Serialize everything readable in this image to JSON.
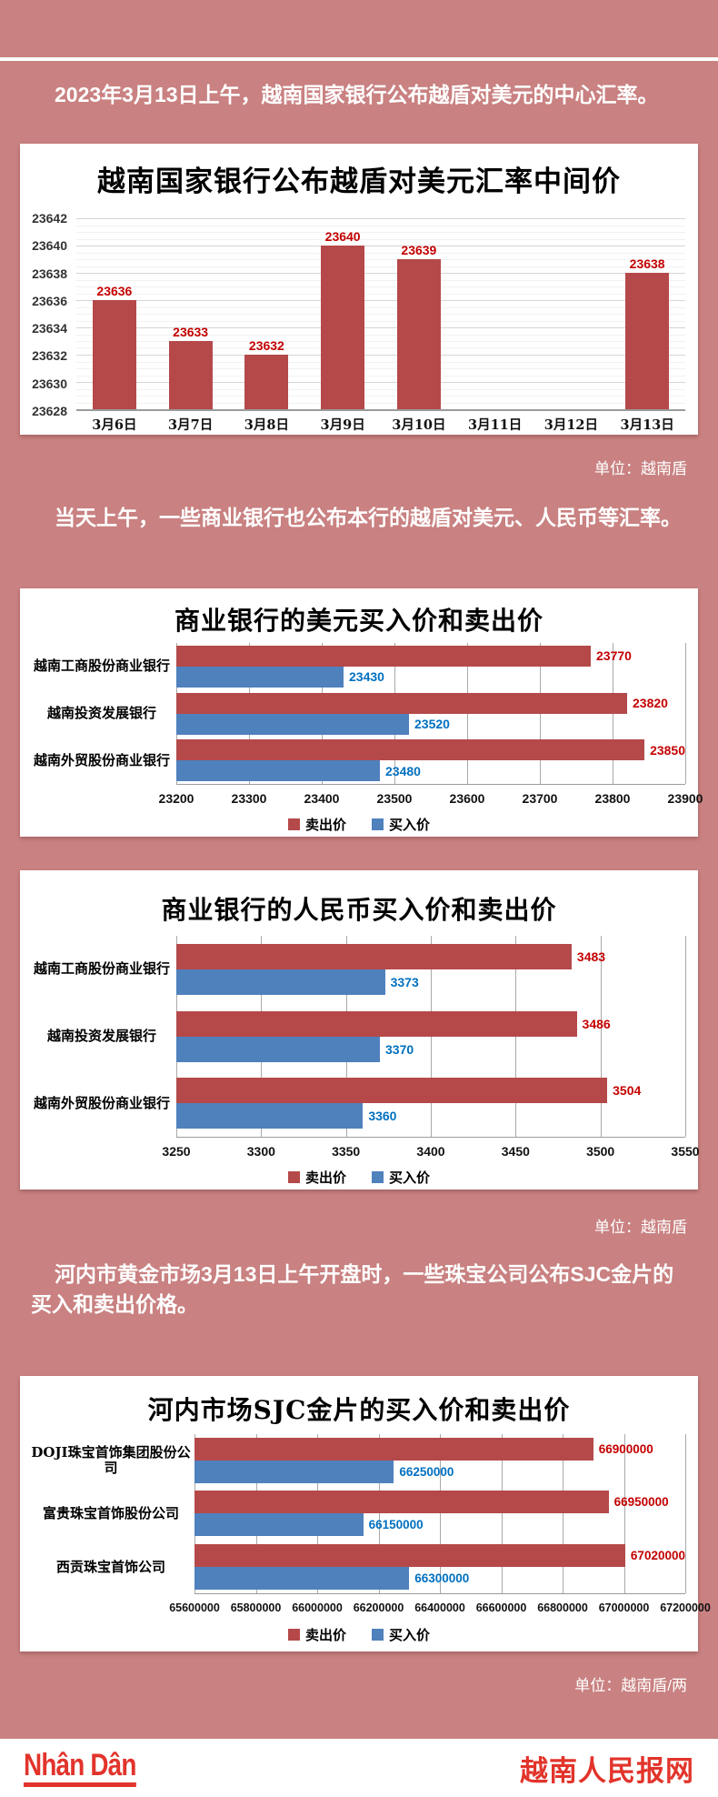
{
  "page": {
    "background_color": "#c98181",
    "intro_paragraphs": [
      "2023年3月13日上午，越南国家银行公布越盾对美元的中心汇率。",
      "当天上午，一些商业银行也公布本行的越盾对美元、人民币等汇率。",
      "河内市黄金市场3月13日上午开盘时，一些珠宝公司公布SJC金片的买入和卖出价格。"
    ],
    "unit_labels": [
      "单位：越南盾",
      "单位：越南盾",
      "单位：越南盾/两"
    ]
  },
  "colors": {
    "sell_bar": "#b5494a",
    "buy_bar": "#4f81bd",
    "sell_label": "#c40000",
    "buy_label": "#0070c0",
    "accent_red": "#e2342b",
    "panel": "#ffffff"
  },
  "footer": {
    "logo_text": "Nhân Dân",
    "site_name": "越南人民报网"
  },
  "chart_data": [
    {
      "type": "bar",
      "title": "越南国家银行公布越盾对美元汇率中间价",
      "categories": [
        "3月6日",
        "3月7日",
        "3月8日",
        "3月9日",
        "3月10日",
        "3月11日",
        "3月12日",
        "3月13日"
      ],
      "values": [
        23636,
        23633,
        23632,
        23640,
        23639,
        null,
        null,
        23638
      ],
      "ylim": [
        23628,
        23642
      ],
      "ytick_step": 2,
      "yticks": [
        23642,
        23640,
        23638,
        23636,
        23634,
        23632,
        23630,
        23628
      ],
      "bar_color": "#b5494a",
      "label_color": "#c40000",
      "grid": true,
      "legend": false,
      "unit": "单位：越南盾"
    },
    {
      "type": "bar-horizontal",
      "title": "商业银行的美元买入价和卖出价",
      "categories": [
        "越南工商股份商业银行",
        "越南投资发展银行",
        "越南外贸股份商业银行"
      ],
      "series": [
        {
          "name": "卖出价",
          "color": "#b5494a",
          "label_color": "#c40000",
          "values": [
            23770,
            23820,
            23850
          ]
        },
        {
          "name": "买入价",
          "color": "#4f81bd",
          "label_color": "#0070c0",
          "values": [
            23430,
            23520,
            23480
          ]
        }
      ],
      "xlim": [
        23200,
        23900
      ],
      "xticks": [
        23200,
        23300,
        23400,
        23500,
        23600,
        23700,
        23800,
        23900
      ],
      "grid": true,
      "legend_position": "bottom"
    },
    {
      "type": "bar-horizontal",
      "title": "商业银行的人民币买入价和卖出价",
      "categories": [
        "越南工商股份商业银行",
        "越南投资发展银行",
        "越南外贸股份商业银行"
      ],
      "series": [
        {
          "name": "卖出价",
          "color": "#b5494a",
          "label_color": "#c40000",
          "values": [
            3483,
            3486,
            3504
          ]
        },
        {
          "name": "买入价",
          "color": "#4f81bd",
          "label_color": "#0070c0",
          "values": [
            3373,
            3370,
            3360
          ]
        }
      ],
      "xlim": [
        3250,
        3550
      ],
      "xticks": [
        3250,
        3300,
        3350,
        3400,
        3450,
        3500,
        3550
      ],
      "grid": true,
      "legend_position": "bottom",
      "unit": "单位：越南盾"
    },
    {
      "type": "bar-horizontal",
      "title": "河内市场SJC金片的买入价和卖出价",
      "categories": [
        "DOJI珠宝首饰集团股份公司",
        "富贵珠宝首饰股份公司",
        "西贡珠宝首饰公司"
      ],
      "series": [
        {
          "name": "卖出价",
          "color": "#b5494a",
          "label_color": "#c40000",
          "values": [
            66900000,
            66950000,
            67020000
          ]
        },
        {
          "name": "买入价",
          "color": "#4f81bd",
          "label_color": "#0070c0",
          "values": [
            66250000,
            66150000,
            66300000
          ]
        }
      ],
      "xlim": [
        65600000,
        67200000
      ],
      "xticks": [
        65600000,
        65800000,
        66000000,
        66200000,
        66400000,
        66600000,
        66800000,
        67000000,
        67200000
      ],
      "grid": true,
      "legend_position": "bottom",
      "unit": "单位：越南盾/两"
    }
  ]
}
